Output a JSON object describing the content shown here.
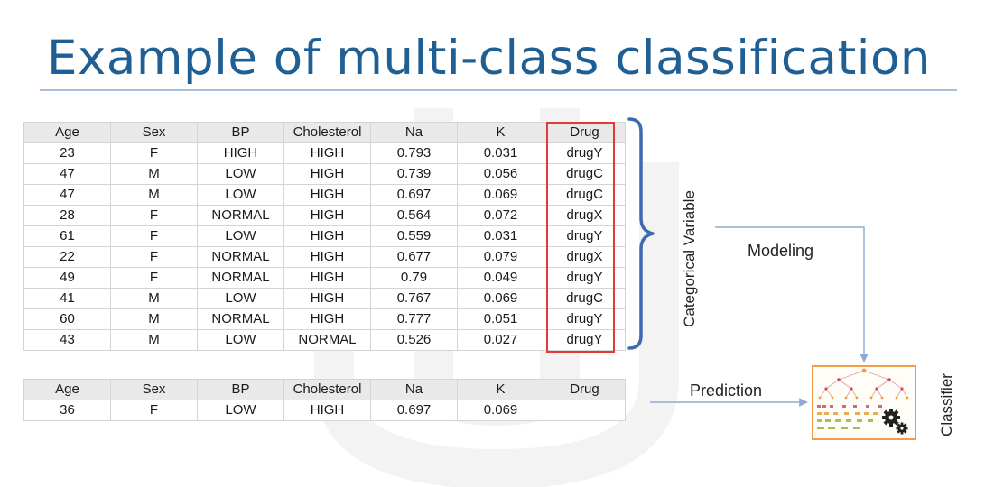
{
  "slide": {
    "title": "Example of multi-class classification"
  },
  "training_table": {
    "columns": [
      "Age",
      "Sex",
      "BP",
      "Cholesterol",
      "Na",
      "K",
      "Drug"
    ],
    "rows": [
      [
        "23",
        "F",
        "HIGH",
        "HIGH",
        "0.793",
        "0.031",
        "drugY"
      ],
      [
        "47",
        "M",
        "LOW",
        "HIGH",
        "0.739",
        "0.056",
        "drugC"
      ],
      [
        "47",
        "M",
        "LOW",
        "HIGH",
        "0.697",
        "0.069",
        "drugC"
      ],
      [
        "28",
        "F",
        "NORMAL",
        "HIGH",
        "0.564",
        "0.072",
        "drugX"
      ],
      [
        "61",
        "F",
        "LOW",
        "HIGH",
        "0.559",
        "0.031",
        "drugY"
      ],
      [
        "22",
        "F",
        "NORMAL",
        "HIGH",
        "0.677",
        "0.079",
        "drugX"
      ],
      [
        "49",
        "F",
        "NORMAL",
        "HIGH",
        "0.79",
        "0.049",
        "drugY"
      ],
      [
        "41",
        "M",
        "LOW",
        "HIGH",
        "0.767",
        "0.069",
        "drugC"
      ],
      [
        "60",
        "M",
        "NORMAL",
        "HIGH",
        "0.777",
        "0.051",
        "drugY"
      ],
      [
        "43",
        "M",
        "LOW",
        "NORMAL",
        "0.526",
        "0.027",
        "drugY"
      ]
    ]
  },
  "prediction_table": {
    "columns": [
      "Age",
      "Sex",
      "BP",
      "Cholesterol",
      "Na",
      "K",
      "Drug"
    ],
    "rows": [
      [
        "36",
        "F",
        "LOW",
        "HIGH",
        "0.697",
        "0.069",
        ""
      ]
    ]
  },
  "annotations": {
    "categorical_variable": "Categorical Variable",
    "modeling": "Modeling",
    "prediction": "Prediction",
    "classifier": "Classifier"
  },
  "colors": {
    "title": "#1f5f93",
    "highlight_border": "#e53935",
    "brace": "#3d6ab0",
    "arrow": "#8fa9d3",
    "classifier_border": "#f39c4a"
  },
  "icons": {
    "classifier": "decision-tree-gears-icon"
  }
}
